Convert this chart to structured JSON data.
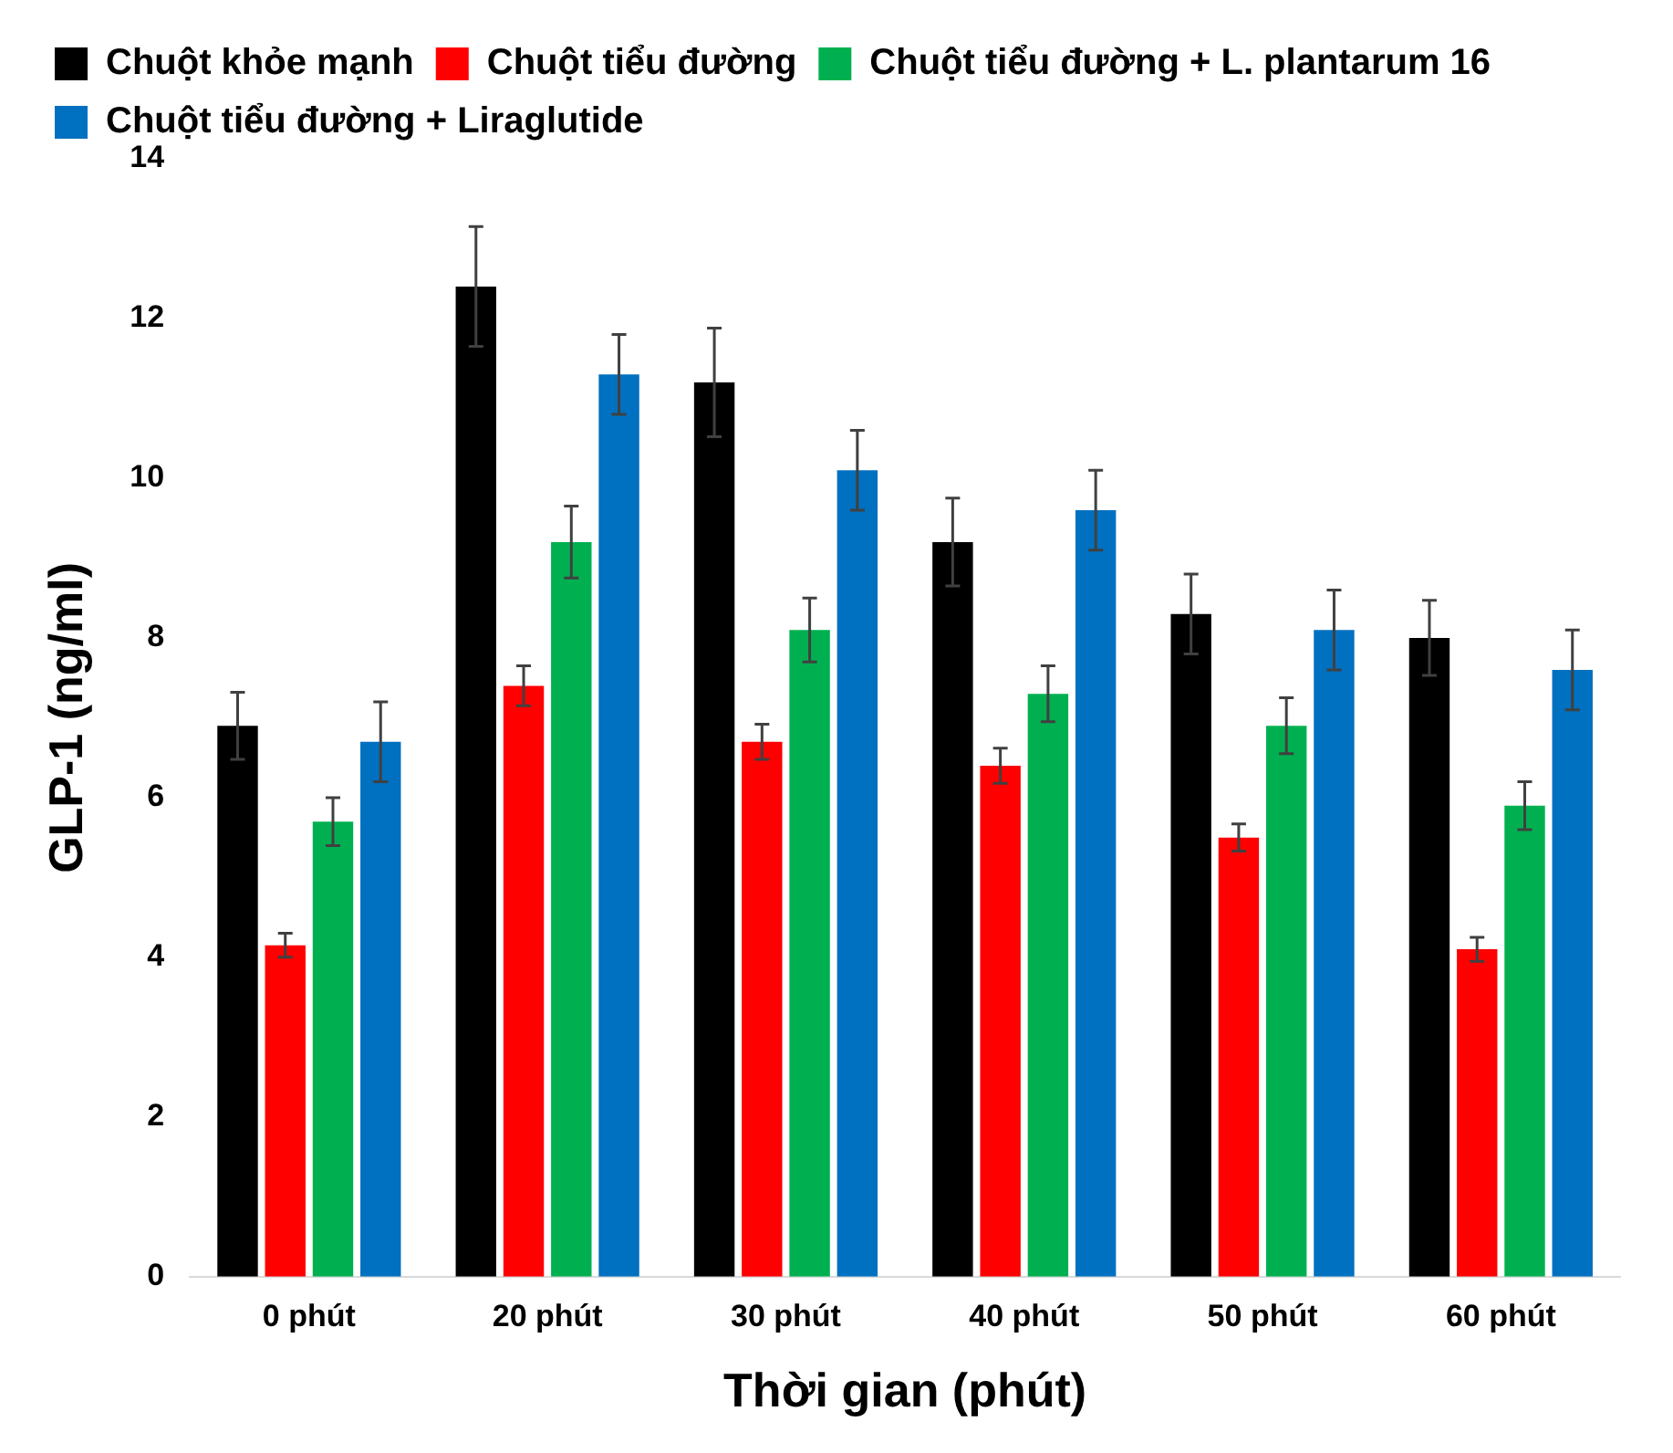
{
  "chart_data": {
    "type": "bar",
    "xlabel": "Thời gian (phút)",
    "ylabel": "GLP-1 (ng/ml)",
    "categories": [
      "0 phút",
      "20 phút",
      "30 phút",
      "40 phút",
      "50 phút",
      "60 phút"
    ],
    "series": [
      {
        "name": "Chuột khỏe mạnh",
        "color": "#000000",
        "values": [
          6.9,
          12.4,
          11.2,
          9.2,
          8.3,
          8.0
        ],
        "errors": [
          0.42,
          0.75,
          0.68,
          0.55,
          0.5,
          0.47
        ]
      },
      {
        "name": "Chuột tiểu đường",
        "color": "#ff0000",
        "values": [
          4.15,
          7.4,
          6.7,
          6.4,
          5.5,
          4.1
        ],
        "errors": [
          0.15,
          0.25,
          0.22,
          0.22,
          0.17,
          0.15
        ]
      },
      {
        "name": "Chuột tiểu đường + L. plantarum 16",
        "color": "#00b050",
        "values": [
          5.7,
          9.2,
          8.1,
          7.3,
          6.9,
          5.9
        ],
        "errors": [
          0.3,
          0.45,
          0.4,
          0.35,
          0.35,
          0.3
        ]
      },
      {
        "name": "Chuột tiểu đường + Liraglutide",
        "color": "#0070c0",
        "values": [
          6.7,
          11.3,
          10.1,
          9.6,
          8.1,
          7.6
        ],
        "errors": [
          0.5,
          0.5,
          0.5,
          0.5,
          0.5,
          0.5
        ]
      }
    ],
    "ylim": [
      0,
      14
    ],
    "yticks": [
      0,
      2,
      4,
      6,
      8,
      10,
      12,
      14
    ],
    "grid": false,
    "legend": "top"
  }
}
